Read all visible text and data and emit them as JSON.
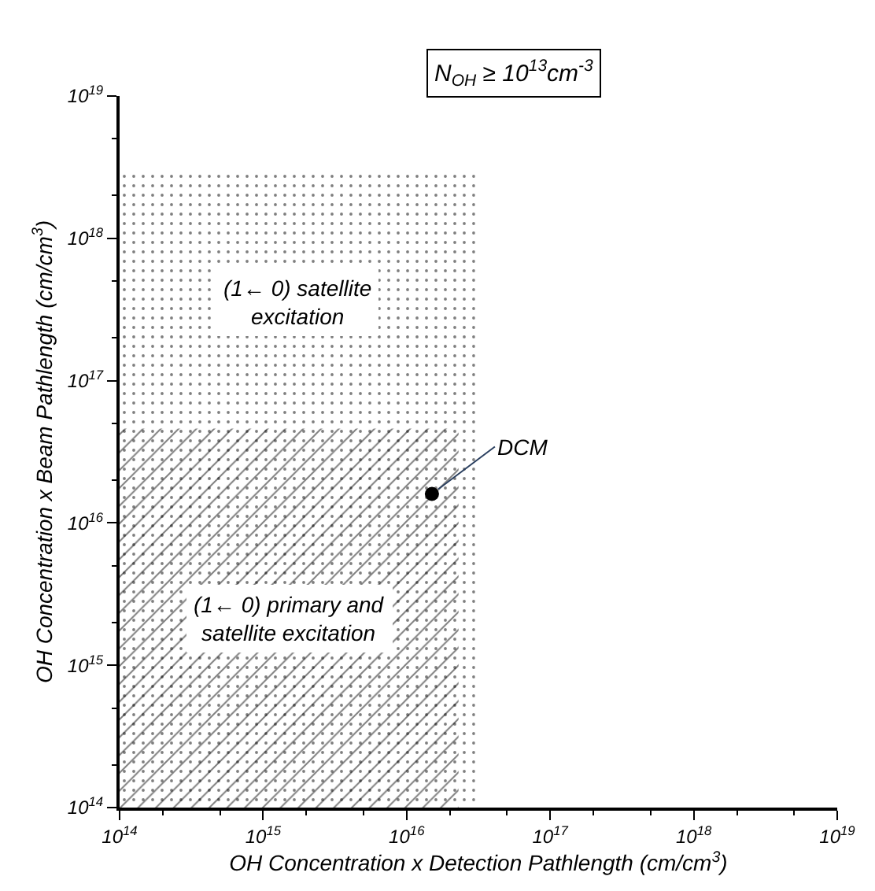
{
  "chart_data": {
    "type": "area",
    "title": "N$_{OH}$ ≥ 10$^{13}$cm$^{-3}$",
    "xlabel": "OH Concentration x Detection Pathlength (cm/cm$^{3}$)",
    "ylabel": "OH Concentration x Beam Pathlength (cm/cm$^{3}$)",
    "log": "xy",
    "xlim": [
      100000000000000.0,
      1e+19
    ],
    "ylim": [
      100000000000000.0,
      1e+19
    ],
    "xticks": [
      {
        "value": 100000000000000.0,
        "label": "10$^{14}$"
      },
      {
        "value": 1000000000000000.0,
        "label": "10$^{15}$"
      },
      {
        "value": 1e+16,
        "label": "10$^{16}$"
      },
      {
        "value": 1e+17,
        "label": "10$^{17}$"
      },
      {
        "value": 1e+18,
        "label": "10$^{18}$"
      },
      {
        "value": 1e+19,
        "label": "10$^{19}$"
      }
    ],
    "yticks": [
      {
        "value": 100000000000000.0,
        "label": "10$^{14}$"
      },
      {
        "value": 1000000000000000.0,
        "label": "10$^{15}$"
      },
      {
        "value": 1e+16,
        "label": "10$^{16}$"
      },
      {
        "value": 1e+17,
        "label": "10$^{17}$"
      },
      {
        "value": 1e+18,
        "label": "10$^{18}$"
      },
      {
        "value": 1e+19,
        "label": "10$^{19}$"
      }
    ],
    "series": [
      {
        "color": "#000000",
        "x": [
          100000000000000.0,
          3e+16
        ],
        "values": [
          2.8e+18,
          2.8e+18
        ]
      },
      {
        "color": "#000000",
        "x": [
          100000000000000.0,
          2.3e+16
        ],
        "values": [
          4.6e+16,
          4.6e+16
        ]
      },
      {
        "type": "scatter",
        "color": "#000000",
        "marker": "circle",
        "x": [
          1.5e+16
        ],
        "values": [
          1.6e+16
        ]
      }
    ],
    "annotations": [
      "(1← 0) satellite\nexcitation",
      "(1← 0) primary and\nsatellite excitation",
      {
        "text": "DCM",
        "x": 1.5e+16,
        "y": 1.6e+16
      }
    ]
  }
}
